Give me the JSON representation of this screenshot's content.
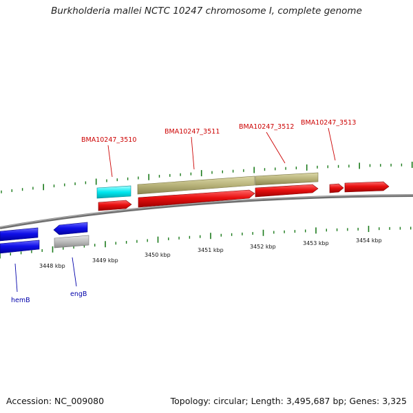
{
  "title": "Burkholderia mallei NCTC 10247 chromosome I, complete genome",
  "footer": {
    "accession": "Accession: NC_009080",
    "summary": "Topology: circular; Length: 3,495,687 bp; Genes: 3,325"
  },
  "colors": {
    "cds_red": "#e01010",
    "cds_blue": "#1010e0",
    "cds_cyan": "#00e8f0",
    "cds_khaki": "#b8b37a",
    "cds_gray": "#b8b8b8",
    "backbone": "#7a7a7a",
    "tick_green": "#1a7a1a",
    "label_red": "#cc0000",
    "label_blue": "#0000aa"
  },
  "scale_labels": [
    "3448 kbp",
    "3449 kbp",
    "3450 kbp",
    "3451 kbp",
    "3452 kbp",
    "3453 kbp",
    "3454 kbp"
  ],
  "gene_labels_top": [
    "BMA10247_3510",
    "BMA10247_3511",
    "BMA10247_3512",
    "BMA10247_3513"
  ],
  "gene_labels_bottom": [
    "hemB",
    "engB"
  ]
}
